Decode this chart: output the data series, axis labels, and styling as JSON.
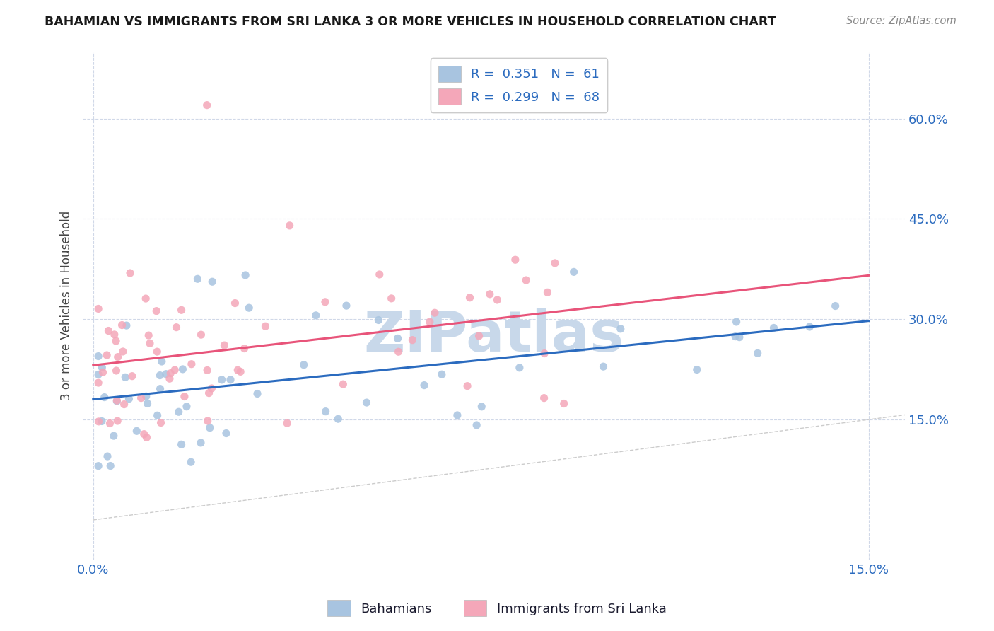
{
  "title": "BAHAMIAN VS IMMIGRANTS FROM SRI LANKA 3 OR MORE VEHICLES IN HOUSEHOLD CORRELATION CHART",
  "source": "Source: ZipAtlas.com",
  "ylabel": "3 or more Vehicles in Household",
  "ytick_vals": [
    0.15,
    0.3,
    0.45,
    0.6
  ],
  "xlim": [
    -0.002,
    0.157
  ],
  "ylim": [
    -0.06,
    0.7
  ],
  "bahamian_R": 0.351,
  "bahamian_N": 61,
  "srilanka_R": 0.299,
  "srilanka_N": 68,
  "bahamian_color": "#a8c4e0",
  "srilanka_color": "#f4a7b9",
  "bahamian_line_color": "#2b6bbf",
  "srilanka_line_color": "#e8547a",
  "diagonal_color": "#cccccc",
  "watermark": "ZIPatlas",
  "watermark_color": "#c8d8ea",
  "legend_label_1": "R =  0.351   N =  61",
  "legend_label_2": "R =  0.299   N =  68",
  "legend_label_bahamians": "Bahamians",
  "legend_label_srilanka": "Immigrants from Sri Lanka",
  "legend_text_color": "#1a1a2e",
  "legend_number_color": "#2b6bbf",
  "axis_label_color": "#2b6bbf",
  "grid_color": "#d0d8e8",
  "title_color": "#1a1a1a",
  "source_color": "#888888",
  "ylabel_color": "#444444"
}
